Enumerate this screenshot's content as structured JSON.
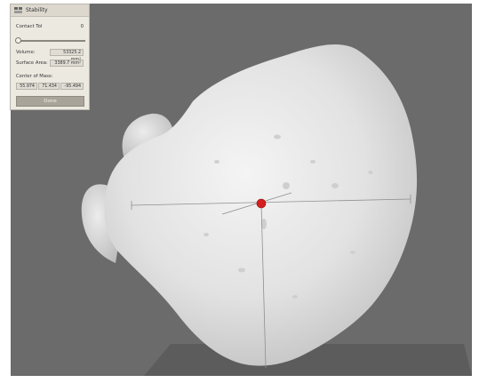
{
  "panel": {
    "title": "Stability",
    "title_icon": "stability-icon",
    "contact_tol_label": "Contact Tol",
    "contact_tol_value": "0",
    "contact_tol_slider_fraction": 0,
    "volume_label": "Volume:",
    "volume_value": "53325.2 mm³",
    "surface_area_label": "Surface Area:",
    "surface_area_value": "3389.7 mm²",
    "center_of_mass_label": "Center of Mass:",
    "center_of_mass": [
      "55.974",
      "71.434",
      "-95.494"
    ],
    "done_label": "Done"
  },
  "viewport": {
    "background": "#6b6b6b",
    "model_color": "#e6e6e6",
    "center_of_mass_marker_color": "#d61f1f"
  }
}
